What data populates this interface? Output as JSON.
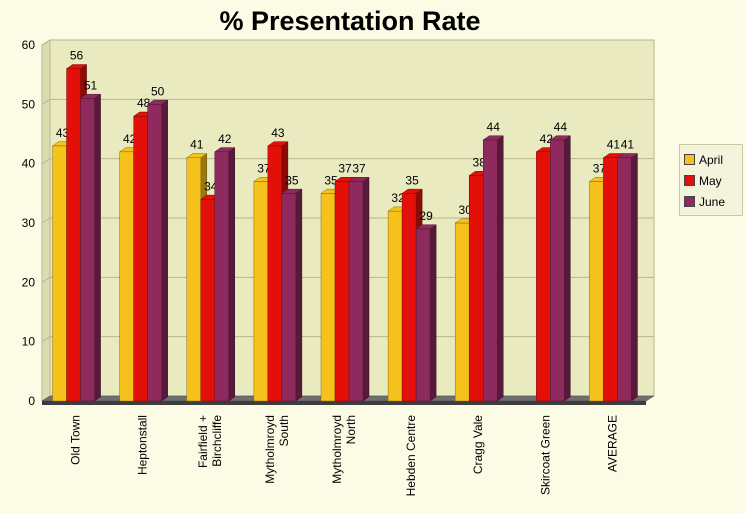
{
  "chart_data": {
    "type": "bar",
    "title": "% Presentation Rate",
    "categories": [
      "Old Town",
      "Heptonstall",
      "Fairfield + Birchcliffe",
      "Mytholmroyd South",
      "Mytholmroyd North",
      "Hebden Centre",
      "Cragg Vale",
      "Skircoat Green",
      "AVERAGE"
    ],
    "category_lines": [
      [
        "Old Town"
      ],
      [
        "Heptonstall"
      ],
      [
        "Fairfield +",
        "Birchcliffe"
      ],
      [
        "Mytholmroyd",
        "South"
      ],
      [
        "Mytholmroyd",
        "North"
      ],
      [
        "Hebden Centre"
      ],
      [
        "Cragg Vale"
      ],
      [
        "Skircoat Green"
      ],
      [
        "AVERAGE"
      ]
    ],
    "series": [
      {
        "name": "April",
        "color": "#f5c21b",
        "values": [
          43,
          42,
          41,
          37,
          35,
          32,
          30,
          null,
          37
        ]
      },
      {
        "name": "May",
        "color": "#e3100a",
        "values": [
          56,
          48,
          34,
          43,
          37,
          35,
          38,
          42,
          41
        ]
      },
      {
        "name": "June",
        "color": "#8e2a5e",
        "values": [
          51,
          50,
          42,
          35,
          37,
          29,
          44,
          44,
          41
        ]
      }
    ],
    "ylim": [
      0,
      60
    ],
    "yticks": [
      0,
      10,
      20,
      30,
      40,
      50,
      60
    ],
    "grid": true,
    "legend_position": "right"
  }
}
